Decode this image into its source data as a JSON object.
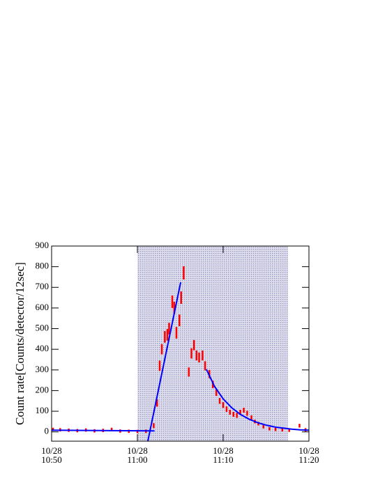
{
  "chart_data": {
    "type": "scatter",
    "y_label": "Count rate[Counts/detector/12sec]",
    "xlim": [
      "10:50",
      "11:20"
    ],
    "ylim": [
      -45,
      900
    ],
    "xticks": [
      {
        "value": "10:50",
        "label": [
          "10/28",
          "10:50"
        ]
      },
      {
        "value": "11:00",
        "label": [
          "10/28",
          "11:00"
        ]
      },
      {
        "value": "11:10",
        "label": [
          "10/28",
          "11:10"
        ]
      },
      {
        "value": "11:20",
        "label": [
          "10/28",
          "11:20"
        ]
      }
    ],
    "yticks": [
      0,
      100,
      200,
      300,
      400,
      500,
      600,
      700,
      800,
      900
    ],
    "shaded_range": [
      "11:00",
      "11:17:34"
    ],
    "shade_color": "#8080b8",
    "points": {
      "color": "#ff0000",
      "x": [
        "10:50:10",
        "10:51:00",
        "10:52:00",
        "10:53:00",
        "10:54:00",
        "10:55:00",
        "10:56:00",
        "10:57:00",
        "10:58:00",
        "10:59:00",
        "11:00:00",
        "11:01:00",
        "11:01:54",
        "11:02:18",
        "11:02:36",
        "11:02:51",
        "11:03:12",
        "11:03:30",
        "11:03:42",
        "11:04:04",
        "11:04:18",
        "11:04:33",
        "11:04:54",
        "11:05:06",
        "11:05:24",
        "11:06:00",
        "11:06:18",
        "11:06:36",
        "11:06:54",
        "11:07:12",
        "11:07:36",
        "11:07:54",
        "11:08:24",
        "11:08:48",
        "11:09:12",
        "11:09:36",
        "11:10:00",
        "11:10:24",
        "11:10:48",
        "11:11:12",
        "11:11:36",
        "11:12:00",
        "11:12:24",
        "11:12:48",
        "11:13:18",
        "11:13:42",
        "11:14:06",
        "11:14:42",
        "11:15:24",
        "11:16:06",
        "11:16:54",
        "11:17:42",
        "11:18:54",
        "11:19:36"
      ],
      "values": [
        12,
        10,
        8,
        6,
        9,
        5,
        7,
        12,
        4,
        3,
        2,
        3,
        30,
        140,
        320,
        400,
        460,
        470,
        500,
        630,
        600,
        480,
        540,
        650,
        770,
        290,
        380,
        420,
        370,
        360,
        370,
        320,
        280,
        230,
        190,
        150,
        130,
        110,
        95,
        85,
        80,
        95,
        105,
        90,
        70,
        50,
        40,
        25,
        15,
        12,
        10,
        8,
        30,
        10
      ],
      "errors": [
        8,
        8,
        8,
        8,
        8,
        8,
        8,
        8,
        8,
        8,
        8,
        8,
        12,
        18,
        25,
        25,
        28,
        28,
        28,
        30,
        30,
        28,
        28,
        30,
        32,
        22,
        25,
        25,
        24,
        24,
        24,
        22,
        20,
        18,
        16,
        14,
        14,
        13,
        12,
        12,
        12,
        12,
        12,
        12,
        10,
        9,
        9,
        8,
        8,
        8,
        8,
        8,
        9,
        8
      ]
    },
    "fits": [
      {
        "color": "#0000ff",
        "x": [
          "10:50",
          "11:02"
        ],
        "values": [
          8,
          5
        ]
      },
      {
        "color": "#0000ff",
        "x": [
          "11:01:13",
          "11:05:03"
        ],
        "values": [
          -45,
          725
        ]
      },
      {
        "color": "#0000ff",
        "x": [
          "11:08:03",
          "11:09:00",
          "11:10:00",
          "11:11:00",
          "11:12:00",
          "11:13:00",
          "11:14:00",
          "11:15:00",
          "11:16:00",
          "11:17:00",
          "11:18:00",
          "11:19:00",
          "11:20:00"
        ],
        "values": [
          303,
          220,
          160,
          117,
          85,
          62,
          45,
          33,
          24,
          18,
          13,
          10,
          8
        ]
      }
    ]
  }
}
